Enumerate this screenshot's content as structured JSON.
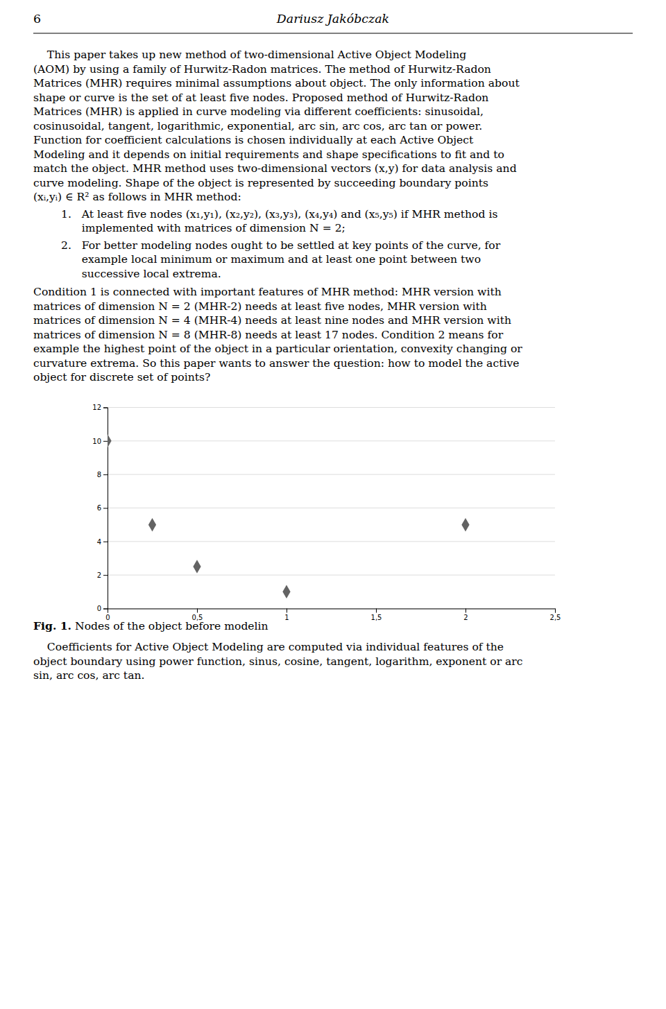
{
  "page_number": "6",
  "header_title": "Dariusz Jakóbczak",
  "paragraph_lines": [
    "    This paper takes up new method of two-dimensional Active Object Modeling",
    "(AOM) by using a family of Hurwitz-Radon matrices. The method of Hurwitz-Radon",
    "Matrices (MHR) requires minimal assumptions about object. The only information about",
    "shape or curve is the set of at least five nodes. Proposed method of Hurwitz-Radon",
    "Matrices (MHR) is applied in curve modeling via different coefficients: sinusoidal,",
    "cosinusoidal, tangent, logarithmic, exponential, arc sin, arc cos, arc tan or power.",
    "Function for coefficient calculations is chosen individually at each Active Object",
    "Modeling and it depends on initial requirements and shape specifications to fit and to",
    "match the object. MHR method uses two-dimensional vectors (x,y) for data analysis and",
    "curve modeling. Shape of the object is represented by succeeding boundary points",
    "(xᵢ,yᵢ) ∈ R² as follows in MHR method:"
  ],
  "items": [
    [
      "1.   At least five nodes (x₁,y₁), (x₂,y₂), (x₃,y₃), (x₄,y₄) and (x₅,y₅) if MHR method is",
      "      implemented with matrices of dimension N = 2;"
    ],
    [
      "2.   For better modeling nodes ought to be settled at key points of the curve, for",
      "      example local minimum or maximum and at least one point between two",
      "      successive local extrema."
    ]
  ],
  "condition_lines": [
    "Condition 1 is connected with important features of MHR method: MHR version with",
    "matrices of dimension N = 2 (MHR-2) needs at least five nodes, MHR version with",
    "matrices of dimension N = 4 (MHR-4) needs at least nine nodes and MHR version with",
    "matrices of dimension N = 8 (MHR-8) needs at least 17 nodes. Condition 2 means for",
    "example the highest point of the object in a particular orientation, convexity changing or",
    "curvature extrema. So this paper wants to answer the question: how to model the active",
    "object for discrete set of points?"
  ],
  "chart_data": {
    "type": "scatter",
    "x": [
      0.0,
      0.25,
      0.5,
      1.0,
      2.0
    ],
    "values": [
      10.0,
      5.0,
      2.5,
      1.0,
      5.0
    ],
    "color": "#636363",
    "marker": "diamond",
    "xlim": [
      0,
      2.5
    ],
    "ylim": [
      0,
      12
    ],
    "xticks": [
      0,
      {
        "value": 0.5,
        "label": "0,5"
      },
      1,
      {
        "value": 1.5,
        "label": "1,5"
      },
      2,
      {
        "value": 2.5,
        "label": "2,5"
      }
    ],
    "yticks": [
      0,
      2,
      4,
      6,
      8,
      10,
      12
    ],
    "grid": "y"
  },
  "caption_label": "Fig. 1.",
  "caption_text": "Nodes of the object before modelin",
  "closing_lines": [
    "    Coefficients for Active Object Modeling are computed via individual features of the",
    "object boundary using power function, sinus, cosine, tangent, logarithm, exponent or arc",
    "sin, arc cos, arc tan."
  ]
}
